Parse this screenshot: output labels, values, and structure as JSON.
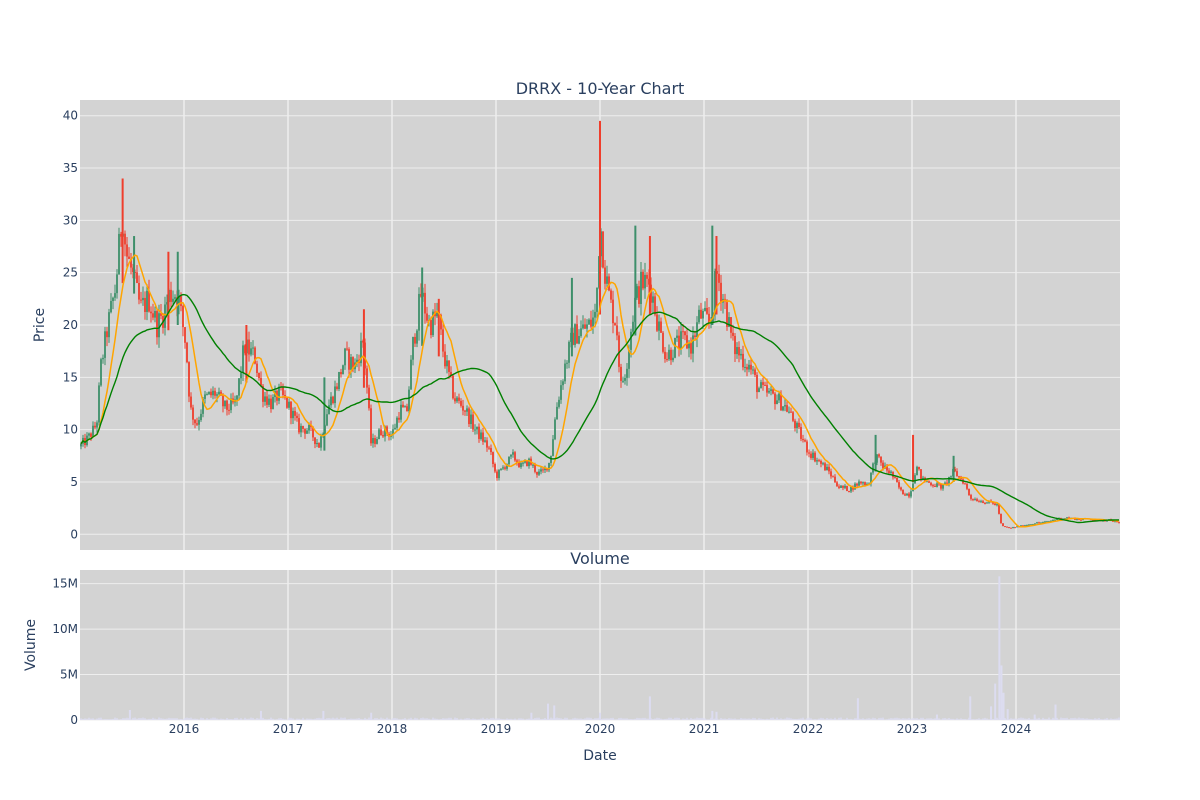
{
  "chart_data": [
    {
      "type": "candlestick",
      "title": "DRRX - 10-Year Chart",
      "ylabel": "Price",
      "ylim": [
        -1.5,
        41.5
      ],
      "yticks": [
        0,
        5,
        10,
        15,
        20,
        25,
        30,
        35,
        40
      ],
      "xlim": [
        2015.0,
        2025.0
      ],
      "grid": true,
      "colors": {
        "up": "#3d8f6a",
        "down": "#ef3e2c",
        "ma_short": "#ffa500",
        "ma_long": "#008000",
        "plot_bg": "#d3d3d3",
        "grid": "#eeeeee"
      },
      "close_anchors": [
        [
          2015.0,
          8.4
        ],
        [
          2015.08,
          9.2
        ],
        [
          2015.16,
          10.5
        ],
        [
          2015.2,
          16.0
        ],
        [
          2015.26,
          19.5
        ],
        [
          2015.34,
          23.5
        ],
        [
          2015.41,
          31.0
        ],
        [
          2015.44,
          27.0
        ],
        [
          2015.5,
          25.0
        ],
        [
          2015.58,
          21.5
        ],
        [
          2015.66,
          22.5
        ],
        [
          2015.74,
          20.0
        ],
        [
          2015.8,
          21.0
        ],
        [
          2015.86,
          23.0
        ],
        [
          2015.94,
          23.0
        ],
        [
          2016.02,
          18.0
        ],
        [
          2016.06,
          12.0
        ],
        [
          2016.12,
          10.5
        ],
        [
          2016.2,
          13.0
        ],
        [
          2016.3,
          13.5
        ],
        [
          2016.4,
          12.0
        ],
        [
          2016.5,
          12.5
        ],
        [
          2016.58,
          18.0
        ],
        [
          2016.68,
          17.0
        ],
        [
          2016.75,
          13.5
        ],
        [
          2016.84,
          12.5
        ],
        [
          2016.92,
          13.5
        ],
        [
          2017.02,
          12.0
        ],
        [
          2017.1,
          10.2
        ],
        [
          2017.2,
          10.0
        ],
        [
          2017.3,
          8.5
        ],
        [
          2017.38,
          12.0
        ],
        [
          2017.46,
          14.0
        ],
        [
          2017.55,
          17.0
        ],
        [
          2017.64,
          16.0
        ],
        [
          2017.72,
          18.5
        ],
        [
          2017.76,
          14.0
        ],
        [
          2017.8,
          8.5
        ],
        [
          2017.9,
          10.0
        ],
        [
          2018.0,
          9.5
        ],
        [
          2018.08,
          12.0
        ],
        [
          2018.14,
          11.5
        ],
        [
          2018.2,
          18.0
        ],
        [
          2018.28,
          23.0
        ],
        [
          2018.36,
          20.0
        ],
        [
          2018.44,
          21.0
        ],
        [
          2018.5,
          17.0
        ],
        [
          2018.6,
          13.0
        ],
        [
          2018.7,
          12.0
        ],
        [
          2018.8,
          10.0
        ],
        [
          2018.88,
          9.0
        ],
        [
          2018.94,
          8.0
        ],
        [
          2019.0,
          5.5
        ],
        [
          2019.08,
          6.5
        ],
        [
          2019.16,
          7.5
        ],
        [
          2019.24,
          6.5
        ],
        [
          2019.32,
          7.0
        ],
        [
          2019.4,
          5.8
        ],
        [
          2019.46,
          6.0
        ],
        [
          2019.52,
          7.0
        ],
        [
          2019.58,
          12.0
        ],
        [
          2019.66,
          16.0
        ],
        [
          2019.74,
          19.0
        ],
        [
          2019.82,
          19.5
        ],
        [
          2019.9,
          20.0
        ],
        [
          2019.96,
          21.0
        ],
        [
          2020.0,
          30.0
        ],
        [
          2020.05,
          25.0
        ],
        [
          2020.1,
          22.0
        ],
        [
          2020.16,
          20.0
        ],
        [
          2020.2,
          14.0
        ],
        [
          2020.25,
          16.0
        ],
        [
          2020.33,
          22.0
        ],
        [
          2020.4,
          24.0
        ],
        [
          2020.48,
          24.0
        ],
        [
          2020.56,
          20.0
        ],
        [
          2020.64,
          17.0
        ],
        [
          2020.72,
          18.0
        ],
        [
          2020.8,
          18.5
        ],
        [
          2020.88,
          18.0
        ],
        [
          2020.96,
          21.0
        ],
        [
          2021.06,
          20.0
        ],
        [
          2021.12,
          25.0
        ],
        [
          2021.2,
          22.0
        ],
        [
          2021.28,
          18.0
        ],
        [
          2021.36,
          17.0
        ],
        [
          2021.44,
          16.0
        ],
        [
          2021.52,
          14.0
        ],
        [
          2021.6,
          13.5
        ],
        [
          2021.7,
          13.0
        ],
        [
          2021.8,
          12.0
        ],
        [
          2021.9,
          10.0
        ],
        [
          2022.0,
          8.0
        ],
        [
          2022.1,
          7.0
        ],
        [
          2022.2,
          6.0
        ],
        [
          2022.3,
          4.5
        ],
        [
          2022.4,
          4.3
        ],
        [
          2022.5,
          5.0
        ],
        [
          2022.58,
          4.8
        ],
        [
          2022.65,
          7.5
        ],
        [
          2022.72,
          6.5
        ],
        [
          2022.8,
          5.8
        ],
        [
          2022.9,
          4.0
        ],
        [
          2022.98,
          3.8
        ],
        [
          2023.04,
          6.5
        ],
        [
          2023.1,
          5.2
        ],
        [
          2023.2,
          4.8
        ],
        [
          2023.3,
          4.5
        ],
        [
          2023.4,
          6.0
        ],
        [
          2023.5,
          5.0
        ],
        [
          2023.56,
          3.5
        ],
        [
          2023.66,
          3.2
        ],
        [
          2023.76,
          3.0
        ],
        [
          2023.82,
          2.8
        ],
        [
          2023.86,
          0.8
        ],
        [
          2023.94,
          0.6
        ],
        [
          2024.1,
          0.9
        ],
        [
          2024.2,
          1.1
        ],
        [
          2024.3,
          1.2
        ],
        [
          2024.4,
          1.5
        ],
        [
          2024.5,
          1.6
        ],
        [
          2024.6,
          1.4
        ],
        [
          2024.7,
          1.5
        ],
        [
          2024.8,
          1.3
        ],
        [
          2024.9,
          1.4
        ],
        [
          2025.0,
          1.0
        ]
      ],
      "spikes": [
        {
          "x": 2015.41,
          "high": 34.0,
          "low": 24.0
        },
        {
          "x": 2015.52,
          "high": 28.5,
          "low": 23.0
        },
        {
          "x": 2015.85,
          "high": 27.0,
          "low": 19.5
        },
        {
          "x": 2015.94,
          "high": 27.0,
          "low": 20.0
        },
        {
          "x": 2016.6,
          "high": 20.0,
          "low": 14.5
        },
        {
          "x": 2017.35,
          "high": 15.0,
          "low": 8.0
        },
        {
          "x": 2017.73,
          "high": 21.5,
          "low": 14.0
        },
        {
          "x": 2018.29,
          "high": 25.5,
          "low": 18.0
        },
        {
          "x": 2018.45,
          "high": 22.5,
          "low": 17.0
        },
        {
          "x": 2019.73,
          "high": 24.5,
          "low": 17.0
        },
        {
          "x": 2020.0,
          "high": 39.5,
          "low": 21.0
        },
        {
          "x": 2020.34,
          "high": 29.5,
          "low": 19.0
        },
        {
          "x": 2020.48,
          "high": 28.5,
          "low": 21.0
        },
        {
          "x": 2021.08,
          "high": 29.5,
          "low": 20.0
        },
        {
          "x": 2021.12,
          "high": 28.5,
          "low": 21.0
        },
        {
          "x": 2022.65,
          "high": 9.5,
          "low": 6.0
        },
        {
          "x": 2023.01,
          "high": 9.5,
          "low": 5.0
        },
        {
          "x": 2023.4,
          "high": 7.5,
          "low": 5.0
        }
      ]
    },
    {
      "type": "bar",
      "title": "Volume",
      "xlabel": "Date",
      "ylabel": "Volume",
      "ylim": [
        0,
        16500000
      ],
      "yticks": [
        0,
        5000000,
        10000000,
        15000000
      ],
      "ytick_labels": [
        "0",
        "5M",
        "10M",
        "15M"
      ],
      "xticks": [
        2016,
        2017,
        2018,
        2019,
        2020,
        2021,
        2022,
        2023,
        2024
      ],
      "xlim": [
        2015.0,
        2025.0
      ],
      "color": "#dcdcf0",
      "base_volume": 150000,
      "spikes": [
        [
          2015.48,
          1100000
        ],
        [
          2016.74,
          1000000
        ],
        [
          2017.34,
          1000000
        ],
        [
          2017.8,
          800000
        ],
        [
          2019.34,
          800000
        ],
        [
          2019.5,
          1800000
        ],
        [
          2019.56,
          1600000
        ],
        [
          2020.0,
          800000
        ],
        [
          2020.48,
          2600000
        ],
        [
          2021.08,
          1000000
        ],
        [
          2021.12,
          900000
        ],
        [
          2022.48,
          2400000
        ],
        [
          2023.24,
          600000
        ],
        [
          2023.56,
          2600000
        ],
        [
          2023.76,
          1500000
        ],
        [
          2023.8,
          4000000
        ],
        [
          2023.84,
          15800000
        ],
        [
          2023.86,
          6000000
        ],
        [
          2023.88,
          3000000
        ],
        [
          2023.92,
          1200000
        ],
        [
          2024.18,
          600000
        ],
        [
          2024.38,
          1700000
        ]
      ]
    }
  ]
}
